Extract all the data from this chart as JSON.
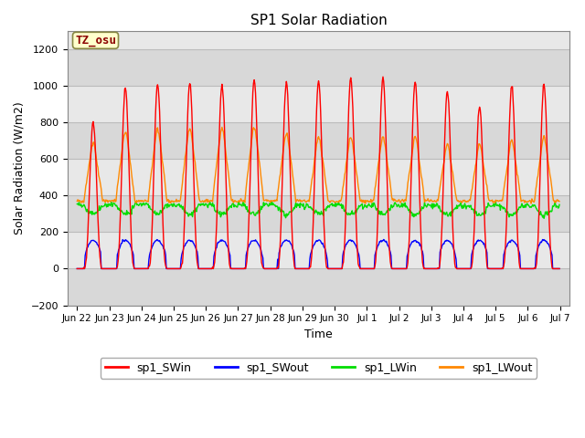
{
  "title": "SP1 Solar Radiation",
  "xlabel": "Time",
  "ylabel": "Solar Radiation (W/m2)",
  "ylim": [
    -200,
    1300
  ],
  "yticks": [
    -200,
    0,
    200,
    400,
    600,
    800,
    1000,
    1200
  ],
  "xtick_labels": [
    "Jun 22",
    "Jun 23",
    "Jun 24",
    "Jun 25",
    "Jun 26",
    "Jun 27",
    "Jun 28",
    "Jun 29",
    "Jun 30",
    "Jul 1",
    "Jul 2",
    "Jul 3",
    "Jul 4",
    "Jul 5",
    "Jul 6",
    "Jul 7"
  ],
  "annotation_text": "TZ_osu",
  "annotation_text_color": "#8b0000",
  "annotation_bg_color": "#ffffcc",
  "annotation_border_color": "#888844",
  "colors": {
    "SWin": "#ff0000",
    "SWout": "#0000ff",
    "LWin": "#00dd00",
    "LWout": "#ff8800"
  },
  "legend_labels": [
    "sp1_SWin",
    "sp1_SWout",
    "sp1_LWin",
    "sp1_LWout"
  ],
  "plot_bg_color": "#e8e8e8",
  "band_colors": [
    "#e0e0e0",
    "#d0d0d0"
  ],
  "grid_color": "#bbbbbb",
  "n_days": 15
}
